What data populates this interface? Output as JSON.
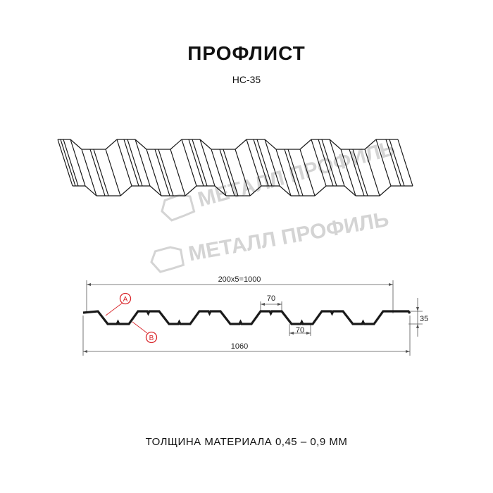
{
  "title": "ПРОФЛИСТ",
  "subtitle": "НС-35",
  "watermark": "МЕТАЛЛ ПРОФИЛЬ",
  "dimensions": {
    "pitch_total": "200x5=1000",
    "top_flat": "70",
    "bottom_flat": "70",
    "height": "35",
    "full_width": "1060"
  },
  "markers": {
    "a": "A",
    "b": "B"
  },
  "footer": "ТОЛЩИНА МАТЕРИАЛА 0,45 – 0,9 ММ",
  "colors": {
    "profile": "#1a1a1a",
    "marker": "#d9262b",
    "watermark": "#d4d4d4",
    "dimension": "#555555"
  }
}
